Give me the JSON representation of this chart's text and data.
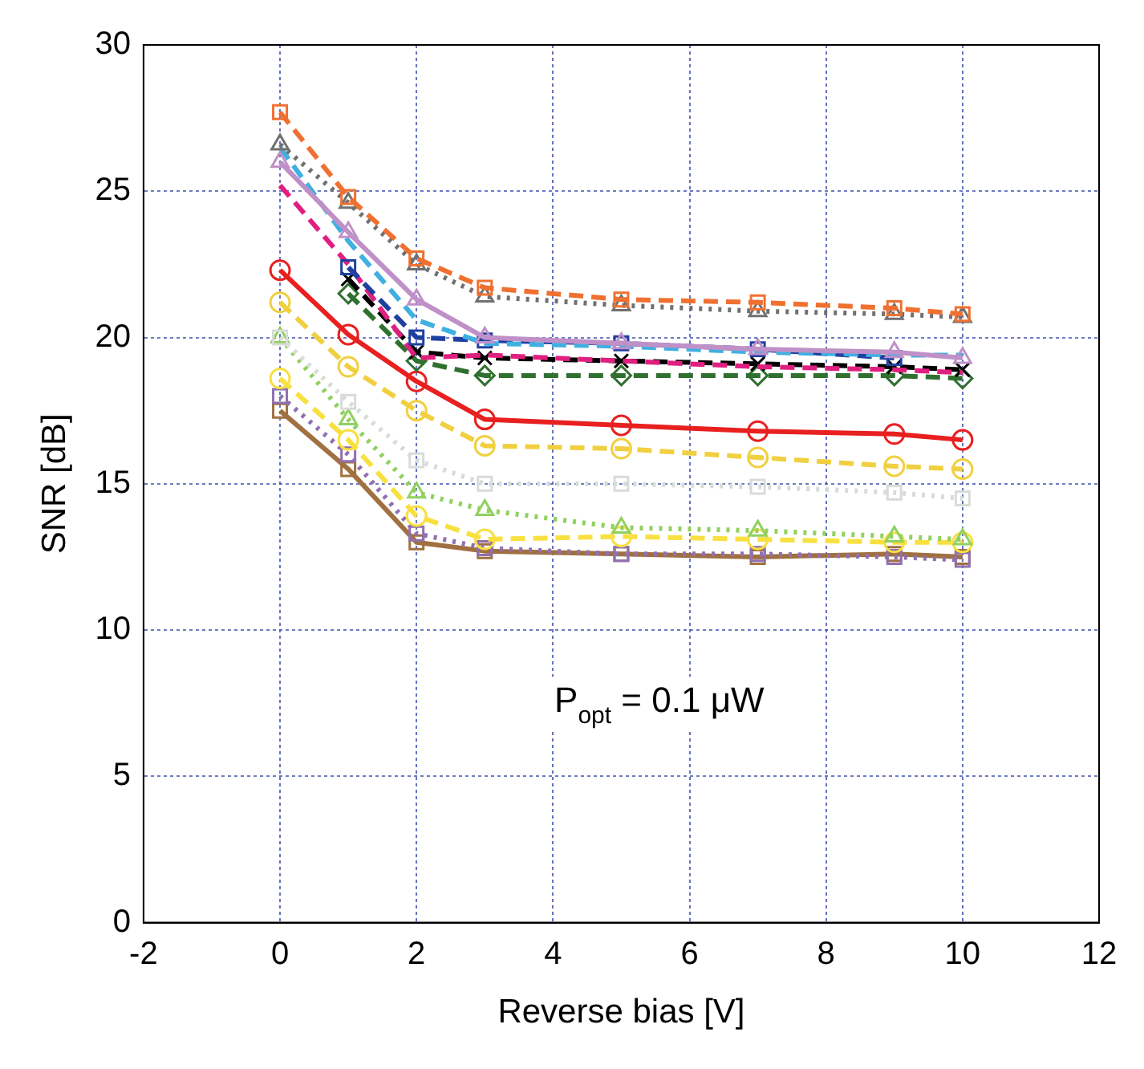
{
  "chart_data": {
    "type": "line",
    "xlabel": "Reverse bias [V]",
    "ylabel": "SNR [dB]",
    "xlim": [
      -2,
      12
    ],
    "ylim": [
      0,
      30
    ],
    "xticks": [
      -2,
      0,
      2,
      4,
      6,
      8,
      10,
      12
    ],
    "yticks": [
      0,
      5,
      10,
      15,
      20,
      25,
      30
    ],
    "grid": true,
    "legend": false,
    "annotations": [
      "P$_{opt}$ = 0.1 μW"
    ],
    "x": [
      0,
      1,
      2,
      3,
      5,
      7,
      9,
      10
    ],
    "series": [
      {
        "color": "#f07030",
        "marker": "square",
        "line_style": "dashed",
        "values": [
          27.7,
          24.8,
          22.7,
          21.7,
          21.3,
          21.2,
          21.0,
          20.8
        ]
      },
      {
        "color": "#707070",
        "marker": "triangle",
        "line_style": "dotted",
        "values": [
          26.6,
          24.6,
          22.5,
          21.4,
          21.1,
          20.9,
          20.8,
          20.7
        ]
      },
      {
        "color": "#c090c8",
        "marker": "triangle",
        "line_style": "solid",
        "values": [
          26.0,
          23.6,
          21.3,
          20.0,
          19.8,
          19.6,
          19.5,
          19.3
        ]
      },
      {
        "color": "#40b0e0",
        "marker": "none",
        "line_style": "dashed",
        "values": [
          26.5,
          23.3,
          20.6,
          19.8,
          19.7,
          19.5,
          19.4,
          19.4
        ]
      },
      {
        "color": "#2040a0",
        "marker": "square",
        "line_style": "dashed",
        "values": [
          null,
          22.4,
          20.0,
          19.9,
          19.8,
          19.6,
          19.3,
          null
        ]
      },
      {
        "color": "#e02080",
        "marker": "none",
        "line_style": "dashed",
        "values": [
          25.2,
          22.5,
          19.3,
          19.4,
          19.2,
          19.0,
          18.9,
          18.8
        ]
      },
      {
        "color": "#000000",
        "marker": "cross",
        "line_style": "dashed",
        "values": [
          null,
          22.0,
          19.5,
          19.3,
          19.2,
          19.1,
          19.0,
          18.9
        ]
      },
      {
        "color": "#307030",
        "marker": "diamond",
        "line_style": "dashed",
        "values": [
          null,
          21.5,
          19.2,
          18.7,
          18.7,
          18.7,
          18.7,
          18.6
        ]
      },
      {
        "color": "#e82020",
        "marker": "circle",
        "line_style": "solid",
        "values": [
          22.3,
          20.1,
          18.5,
          17.2,
          17.0,
          16.8,
          16.7,
          16.5
        ]
      },
      {
        "color": "#f0d040",
        "marker": "circle",
        "line_style": "dashed",
        "values": [
          21.2,
          19.0,
          17.5,
          16.3,
          16.2,
          15.9,
          15.6,
          15.5
        ]
      },
      {
        "color": "#d8dcd8",
        "marker": "square",
        "line_style": "dotted",
        "values": [
          20.0,
          17.8,
          15.8,
          15.0,
          15.0,
          14.9,
          14.7,
          14.5
        ]
      },
      {
        "color": "#90d060",
        "marker": "triangle",
        "line_style": "dotted",
        "values": [
          20.0,
          17.2,
          14.7,
          14.1,
          13.5,
          13.4,
          13.2,
          13.1
        ]
      },
      {
        "color": "#f8e040",
        "marker": "circle",
        "line_style": "dashed",
        "values": [
          18.6,
          16.5,
          13.9,
          13.1,
          13.2,
          13.1,
          13.0,
          13.0
        ]
      },
      {
        "color": "#9070b0",
        "marker": "square",
        "line_style": "dotted",
        "values": [
          18.0,
          16.0,
          13.3,
          12.8,
          12.6,
          12.6,
          12.5,
          12.4
        ]
      },
      {
        "color": "#a07040",
        "marker": "square",
        "line_style": "solid",
        "values": [
          17.5,
          15.5,
          13.0,
          12.7,
          12.6,
          12.5,
          12.6,
          12.5
        ]
      }
    ]
  }
}
